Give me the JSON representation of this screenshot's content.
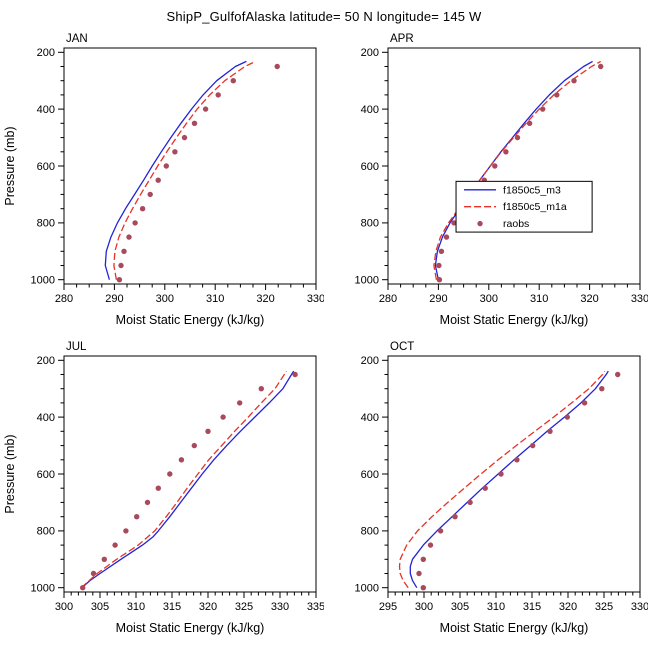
{
  "title": "ShipP_GulfofAlaska  latitude= 50 N longitude= 145 W",
  "legend": {
    "entries": [
      {
        "label": "f1850c5_m3",
        "type": "line",
        "dash": "solid",
        "color": "#2323d6"
      },
      {
        "label": "f1850c5_m1a",
        "type": "line",
        "dash": "dashed",
        "color": "#e63226"
      },
      {
        "label": "raobs",
        "type": "dot",
        "dash": "none",
        "color": "#a8495c"
      }
    ]
  },
  "colors": {
    "frame": "#000000",
    "background": "#ffffff"
  },
  "chart_data": [
    {
      "type": "line",
      "month": "JAN",
      "xlabel": "Moist Static Energy (kJ/kg)",
      "ylabel": "Pressure (mb)",
      "xlim": [
        280,
        330
      ],
      "xticks": [
        280,
        290,
        300,
        310,
        320,
        330
      ],
      "xminor": 2.5,
      "yticks": [
        200,
        400,
        600,
        800,
        1000
      ],
      "yminor": 50,
      "y_edges": [
        185,
        1015
      ],
      "show_legend": false,
      "series": [
        {
          "name": "f1850c5_m3",
          "style": "solid",
          "color": "#2323d6",
          "pressure": [
            1000,
            950,
            900,
            850,
            800,
            750,
            700,
            650,
            600,
            550,
            500,
            450,
            400,
            350,
            300,
            250,
            232
          ],
          "values": [
            289.0,
            288.2,
            288.4,
            289.3,
            290.6,
            292.2,
            294.0,
            295.8,
            297.5,
            299.3,
            301.2,
            303.2,
            305.3,
            307.6,
            310.3,
            314.0,
            316.2
          ]
        },
        {
          "name": "f1850c5_m1a",
          "style": "dashed",
          "color": "#e63226",
          "pressure": [
            1000,
            950,
            900,
            850,
            800,
            750,
            700,
            650,
            600,
            550,
            500,
            450,
            400,
            350,
            300,
            250,
            232
          ],
          "values": [
            290.4,
            289.9,
            290.1,
            290.9,
            292.1,
            293.6,
            295.2,
            296.9,
            298.6,
            300.4,
            302.3,
            304.3,
            306.4,
            308.9,
            311.9,
            315.9,
            318.0
          ]
        },
        {
          "name": "raobs",
          "style": "dots",
          "color": "#a8495c",
          "pressure": [
            1000,
            950,
            900,
            850,
            800,
            750,
            700,
            650,
            600,
            550,
            500,
            450,
            400,
            350,
            300,
            250
          ],
          "values": [
            291.0,
            291.3,
            291.9,
            292.9,
            294.1,
            295.6,
            297.1,
            298.7,
            300.3,
            302.0,
            303.9,
            305.9,
            308.1,
            310.6,
            313.6,
            322.3
          ]
        }
      ]
    },
    {
      "type": "line",
      "month": "APR",
      "xlabel": "Moist Static Energy (kJ/kg)",
      "ylabel": "",
      "xlim": [
        280,
        330
      ],
      "xticks": [
        280,
        290,
        300,
        310,
        320,
        330
      ],
      "xminor": 2.5,
      "yticks": [
        200,
        400,
        600,
        800,
        1000
      ],
      "yminor": 50,
      "y_edges": [
        185,
        1015
      ],
      "show_legend": true,
      "series": [
        {
          "name": "f1850c5_m3",
          "style": "solid",
          "color": "#2323d6",
          "pressure": [
            1000,
            950,
            900,
            850,
            800,
            750,
            700,
            650,
            600,
            550,
            500,
            450,
            400,
            350,
            300,
            250,
            232
          ],
          "values": [
            290.0,
            289.4,
            289.8,
            290.8,
            292.3,
            294.2,
            296.2,
            298.2,
            300.3,
            302.4,
            304.7,
            307.0,
            309.4,
            312.0,
            315.0,
            318.8,
            320.6
          ]
        },
        {
          "name": "f1850c5_m1a",
          "style": "dashed",
          "color": "#e63226",
          "pressure": [
            1000,
            950,
            900,
            850,
            800,
            750,
            700,
            650,
            600,
            550,
            500,
            450,
            400,
            350,
            300,
            250,
            232
          ],
          "values": [
            289.6,
            289.1,
            289.5,
            290.4,
            292.0,
            294.0,
            296.1,
            298.2,
            300.3,
            302.5,
            304.9,
            307.4,
            310.0,
            312.9,
            316.3,
            320.4,
            322.2
          ]
        },
        {
          "name": "raobs",
          "style": "dots",
          "color": "#a8495c",
          "pressure": [
            1000,
            950,
            900,
            850,
            800,
            750,
            700,
            650,
            600,
            550,
            500,
            450,
            400,
            350,
            300,
            250
          ],
          "values": [
            290.2,
            290.1,
            290.6,
            291.6,
            293.1,
            295.1,
            297.1,
            299.1,
            301.2,
            303.4,
            305.7,
            308.1,
            310.7,
            313.5,
            316.9,
            322.2
          ]
        }
      ]
    },
    {
      "type": "line",
      "month": "JUL",
      "xlabel": "Moist Static Energy (kJ/kg)",
      "ylabel": "Pressure (mb)",
      "xlim": [
        300,
        335
      ],
      "xticks": [
        300,
        305,
        310,
        315,
        320,
        325,
        330,
        335
      ],
      "xminor": 1,
      "yticks": [
        200,
        400,
        600,
        800,
        1000
      ],
      "yminor": 50,
      "y_edges": [
        185,
        1015
      ],
      "show_legend": false,
      "series": [
        {
          "name": "f1850c5_m3",
          "style": "solid",
          "color": "#2323d6",
          "pressure": [
            1000,
            975,
            950,
            900,
            850,
            820,
            800,
            750,
            700,
            650,
            600,
            550,
            500,
            450,
            400,
            350,
            300,
            250,
            238
          ],
          "values": [
            302.5,
            303.6,
            305.0,
            307.9,
            310.9,
            312.4,
            313.1,
            314.7,
            316.2,
            317.7,
            319.2,
            320.8,
            322.6,
            324.5,
            326.5,
            328.5,
            330.4,
            331.6,
            331.9
          ]
        },
        {
          "name": "f1850c5_m1a",
          "style": "dashed",
          "color": "#e63226",
          "pressure": [
            1000,
            950,
            900,
            850,
            800,
            750,
            700,
            650,
            600,
            550,
            500,
            450,
            400,
            350,
            300,
            250,
            238
          ],
          "values": [
            302.4,
            304.6,
            307.3,
            310.3,
            312.6,
            314.2,
            315.7,
            317.1,
            318.6,
            320.1,
            321.9,
            323.7,
            325.6,
            327.4,
            329.3,
            330.6,
            330.9
          ]
        },
        {
          "name": "raobs",
          "style": "dots",
          "color": "#a8495c",
          "pressure": [
            1000,
            950,
            900,
            850,
            800,
            750,
            700,
            650,
            600,
            550,
            500,
            450,
            400,
            350,
            300,
            250
          ],
          "values": [
            302.6,
            304.1,
            305.6,
            307.1,
            308.6,
            310.1,
            311.6,
            313.1,
            314.7,
            316.3,
            318.1,
            320.0,
            322.1,
            324.4,
            327.4,
            332.1
          ]
        }
      ]
    },
    {
      "type": "line",
      "month": "OCT",
      "xlabel": "Moist Static Energy (kJ/kg)",
      "ylabel": "",
      "xlim": [
        295,
        330
      ],
      "xticks": [
        295,
        300,
        305,
        310,
        315,
        320,
        325,
        330
      ],
      "xminor": 1,
      "yticks": [
        200,
        400,
        600,
        800,
        1000
      ],
      "yminor": 50,
      "y_edges": [
        185,
        1015
      ],
      "show_legend": false,
      "series": [
        {
          "name": "f1850c5_m3",
          "style": "solid",
          "color": "#2323d6",
          "pressure": [
            1000,
            975,
            950,
            925,
            900,
            850,
            800,
            750,
            700,
            650,
            600,
            550,
            500,
            450,
            400,
            350,
            300,
            250,
            238
          ],
          "values": [
            299.0,
            298.4,
            298.1,
            298.1,
            298.4,
            299.9,
            301.8,
            303.9,
            306.0,
            308.1,
            310.3,
            312.5,
            314.8,
            317.1,
            319.5,
            321.8,
            323.8,
            325.3,
            325.6
          ]
        },
        {
          "name": "f1850c5_m1a",
          "style": "dashed",
          "color": "#e63226",
          "pressure": [
            1000,
            975,
            950,
            925,
            900,
            850,
            800,
            750,
            700,
            650,
            600,
            550,
            500,
            450,
            400,
            350,
            300,
            250,
            238
          ],
          "values": [
            297.8,
            297.1,
            296.7,
            296.6,
            296.7,
            297.6,
            299.1,
            301.1,
            303.3,
            305.6,
            307.9,
            310.3,
            312.8,
            315.4,
            318.0,
            320.5,
            322.9,
            324.8,
            325.1
          ]
        },
        {
          "name": "raobs",
          "style": "dots",
          "color": "#a8495c",
          "pressure": [
            1000,
            950,
            900,
            850,
            800,
            750,
            700,
            650,
            600,
            550,
            500,
            450,
            400,
            350,
            300,
            250
          ],
          "values": [
            299.9,
            299.3,
            299.9,
            300.9,
            302.3,
            304.3,
            306.4,
            308.5,
            310.7,
            312.9,
            315.1,
            317.5,
            319.9,
            322.3,
            324.7,
            326.9
          ]
        }
      ]
    }
  ]
}
